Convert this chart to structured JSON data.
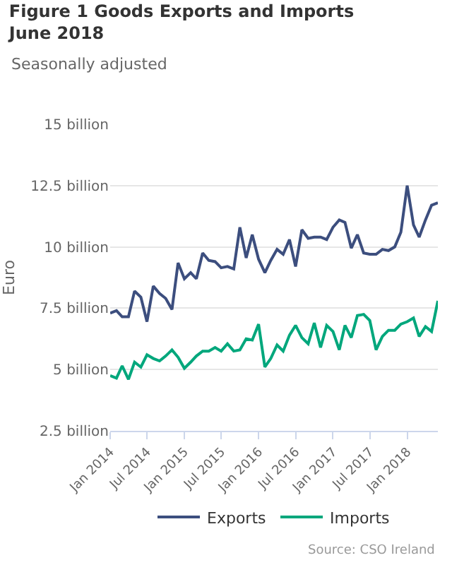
{
  "chart_data": {
    "type": "line",
    "title": "Figure 1 Goods Exports and Imports June 2018",
    "subtitle": "Seasonally adjusted",
    "ylabel": "Euro",
    "x": [
      "2014-01",
      "2014-02",
      "2014-03",
      "2014-04",
      "2014-05",
      "2014-06",
      "2014-07",
      "2014-08",
      "2014-09",
      "2014-10",
      "2014-11",
      "2014-12",
      "2015-01",
      "2015-02",
      "2015-03",
      "2015-04",
      "2015-05",
      "2015-06",
      "2015-07",
      "2015-08",
      "2015-09",
      "2015-10",
      "2015-11",
      "2015-12",
      "2016-01",
      "2016-02",
      "2016-03",
      "2016-04",
      "2016-05",
      "2016-06",
      "2016-07",
      "2016-08",
      "2016-09",
      "2016-10",
      "2016-11",
      "2016-12",
      "2017-01",
      "2017-02",
      "2017-03",
      "2017-04",
      "2017-05",
      "2017-06",
      "2017-07",
      "2017-08",
      "2017-09",
      "2017-10",
      "2017-11",
      "2017-12",
      "2018-01",
      "2018-02",
      "2018-03",
      "2018-04",
      "2018-05",
      "2018-06"
    ],
    "series": [
      {
        "name": "Exports",
        "color": "#3c4e7e",
        "values": [
          7.3,
          7.4,
          7.15,
          7.15,
          8.2,
          7.95,
          6.95,
          8.4,
          8.1,
          7.9,
          7.45,
          9.35,
          8.7,
          8.95,
          8.7,
          9.75,
          9.45,
          9.4,
          9.15,
          9.2,
          9.1,
          10.8,
          9.55,
          10.5,
          9.5,
          8.95,
          9.45,
          9.9,
          9.7,
          10.3,
          9.2,
          10.7,
          10.35,
          10.4,
          10.4,
          10.3,
          10.8,
          11.1,
          11.0,
          9.95,
          10.5,
          9.75,
          9.7,
          9.7,
          9.9,
          9.85,
          10.0,
          10.6,
          12.5,
          10.9,
          10.4,
          11.1,
          11.7,
          11.8
        ]
      },
      {
        "name": "Imports",
        "color": "#00a77c",
        "values": [
          4.75,
          4.65,
          5.15,
          4.6,
          5.3,
          5.1,
          5.6,
          5.45,
          5.35,
          5.55,
          5.8,
          5.5,
          5.05,
          5.3,
          5.55,
          5.75,
          5.75,
          5.9,
          5.75,
          6.05,
          5.75,
          5.8,
          6.25,
          6.2,
          6.85,
          5.1,
          5.45,
          6.0,
          5.75,
          6.4,
          6.8,
          6.3,
          6.05,
          6.9,
          5.9,
          6.8,
          6.55,
          5.8,
          6.8,
          6.3,
          7.2,
          7.25,
          7.0,
          5.8,
          6.35,
          6.6,
          6.6,
          6.85,
          6.95,
          7.1,
          6.35,
          6.75,
          6.55,
          7.8
        ]
      }
    ],
    "xlim": [
      "2014-01",
      "2018-06"
    ],
    "xticks": [
      {
        "value": "2014-01",
        "label": "Jan 2014"
      },
      {
        "value": "2014-07",
        "label": "Jul 2014"
      },
      {
        "value": "2015-01",
        "label": "Jan 2015"
      },
      {
        "value": "2015-07",
        "label": "Jul 2015"
      },
      {
        "value": "2016-01",
        "label": "Jan 2016"
      },
      {
        "value": "2016-07",
        "label": "Jul 2016"
      },
      {
        "value": "2017-01",
        "label": "Jan 2017"
      },
      {
        "value": "2017-07",
        "label": "Jul 2017"
      },
      {
        "value": "2018-01",
        "label": "Jan 2018"
      }
    ],
    "ylim": [
      2.5,
      15
    ],
    "yticks": [
      {
        "value": 2.5,
        "label": "2.5 billion"
      },
      {
        "value": 5,
        "label": "5 billion"
      },
      {
        "value": 7.5,
        "label": "7.5 billion"
      },
      {
        "value": 10,
        "label": "10 billion"
      },
      {
        "value": 12.5,
        "label": "12.5 billion"
      },
      {
        "value": 15,
        "label": "15 billion"
      }
    ],
    "grid": "y",
    "legend": "bottom",
    "line_style": "solid",
    "annotations": [
      "Source: CSO Ireland"
    ]
  }
}
